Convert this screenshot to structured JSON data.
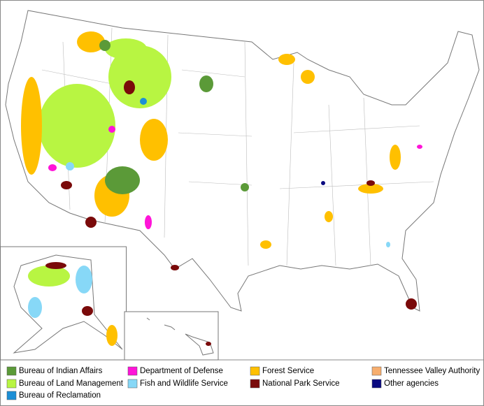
{
  "legend": {
    "items": [
      {
        "label": "Bureau of Indian Affairs",
        "color": "#5b9a38"
      },
      {
        "label": "Department of Defense",
        "color": "#ff14d8"
      },
      {
        "label": "Forest Service",
        "color": "#ffc000"
      },
      {
        "label": "Tennessee Valley Authority",
        "color": "#f7ae6e"
      },
      {
        "label": "Bureau of Land Management",
        "color": "#b8f542"
      },
      {
        "label": "Fish and Wildlife Service",
        "color": "#87d8f7"
      },
      {
        "label": "National Park Service",
        "color": "#7a0a0a"
      },
      {
        "label": "Other agencies",
        "color": "#0a0a80"
      },
      {
        "label": "Bureau of Reclamation",
        "color": "#1c8fd6"
      }
    ]
  }
}
